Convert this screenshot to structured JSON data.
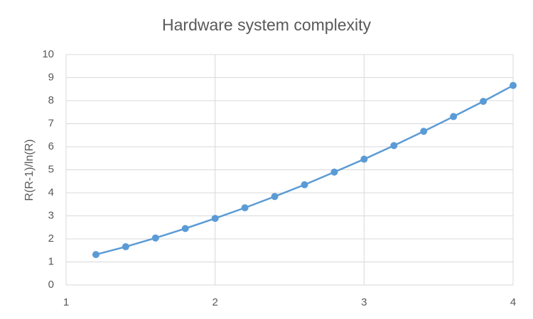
{
  "chart_data": {
    "type": "line",
    "title": "Hardware system complexity",
    "y_label": "R(R-1)/ln(R)",
    "x": [
      1.2,
      1.4,
      1.6,
      1.8,
      2.0,
      2.2,
      2.4,
      2.6,
      2.8,
      3.0,
      3.2,
      3.4,
      3.6,
      3.8,
      4.0
    ],
    "series": [
      {
        "color": "#5b9bd5",
        "values": [
          1.32,
          1.66,
          2.04,
          2.45,
          2.89,
          3.35,
          3.84,
          4.35,
          4.9,
          5.46,
          6.05,
          6.67,
          7.31,
          7.97,
          8.66
        ]
      }
    ],
    "xlim": [
      1,
      4
    ],
    "xticks": [
      1,
      2,
      3,
      4
    ],
    "ylim": [
      0,
      10
    ],
    "yticks": [
      0,
      1,
      2,
      3,
      4,
      5,
      6,
      7,
      8,
      9,
      10
    ],
    "grid": true
  }
}
